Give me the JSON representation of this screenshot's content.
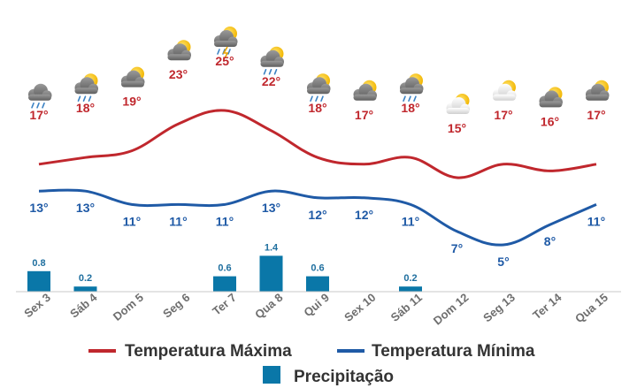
{
  "chart_data": {
    "type": "line",
    "categories": [
      "Sex 3",
      "Sáb 4",
      "Dom 5",
      "Seg 6",
      "Ter 7",
      "Qua 8",
      "Qui 9",
      "Sex 10",
      "Sáb 11",
      "Dom 12",
      "Seg 13",
      "Ter 14",
      "Qua 15"
    ],
    "icons": [
      "rain-cloud-icon",
      "sun-rain-cloud-icon",
      "sun-cloud-icon",
      "sun-cloud-icon",
      "sun-storm-icon",
      "sun-rain-cloud-icon",
      "sun-rain-cloud-icon",
      "sun-cloud-icon",
      "sun-rain-cloud-icon",
      "sun-cloud-light-icon",
      "sun-cloud-light-icon",
      "sun-cloud-icon",
      "sun-cloud-icon"
    ],
    "series": [
      {
        "name": "Temperatura Máxima",
        "values": [
          17,
          18,
          19,
          23,
          25,
          22,
          18,
          17,
          18,
          15,
          17,
          16,
          17
        ],
        "color": "#c0272d"
      },
      {
        "name": "Temperatura Mínima",
        "values": [
          13,
          13,
          11,
          11,
          11,
          13,
          12,
          12,
          11,
          7,
          5,
          8,
          11
        ],
        "color": "#1f5aa6"
      }
    ],
    "temp_labels_max": [
      "17°",
      "18°",
      "19°",
      "23°",
      "25°",
      "22°",
      "18°",
      "17°",
      "18°",
      "15°",
      "17°",
      "16°",
      "17°"
    ],
    "temp_labels_min": [
      "13°",
      "13°",
      "11°",
      "11°",
      "11°",
      "13°",
      "12°",
      "12°",
      "11°",
      "7°",
      "5°",
      "8°",
      "11°"
    ],
    "precipitation": {
      "name": "Precipitação",
      "values": [
        0.8,
        0.2,
        0,
        0,
        0.6,
        1.4,
        0.6,
        0,
        0.2,
        0,
        0,
        0,
        0
      ],
      "labels": [
        "0.8",
        "0.2",
        "",
        "",
        "0.6",
        "1.4",
        "0.6",
        "",
        "0.2",
        "",
        "",
        "",
        ""
      ],
      "color": "#0a77a8"
    },
    "legend": [
      "Temperatura Máxima",
      "Temperatura Mínima",
      "Precipitação"
    ],
    "legend_position": "bottom"
  }
}
